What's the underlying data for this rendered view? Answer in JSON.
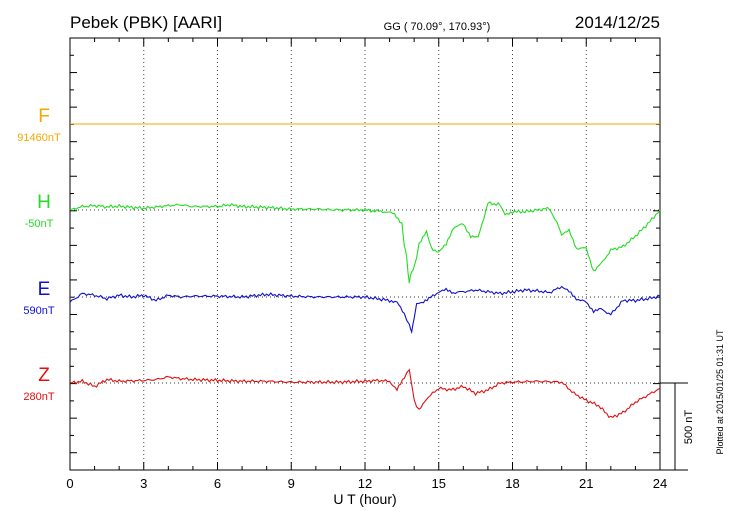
{
  "header": {
    "station": "Pebek (PBK)  [AARI]",
    "coords": "GG ( 70.09°, 170.93°)",
    "date": "2014/12/25"
  },
  "footer_note": "Plotted at 2015/01/25 01:31  UT",
  "scale_bar_label": "500 nT",
  "colors": {
    "F": "#f2a900",
    "H": "#22dd22",
    "E": "#1010cc",
    "Z": "#e01010",
    "axis": "#000000",
    "grid": "#555555"
  },
  "chart_data": {
    "type": "line",
    "title": "Pebek (PBK)  [AARI]",
    "xlabel": "U T (hour)",
    "ylabel": "",
    "xlim": [
      0,
      24
    ],
    "x_ticks": [
      "0",
      "3",
      "6",
      "9",
      "12",
      "15",
      "18",
      "21",
      "24"
    ],
    "grid": true,
    "scale_nT_per_bar": 500,
    "series": [
      {
        "name": "F",
        "baseline_label": "91460nT",
        "x": [
          0,
          24
        ],
        "y": [
          0,
          0
        ]
      },
      {
        "name": "H",
        "baseline_label": "-50nT",
        "x": [
          0,
          0.5,
          1,
          1.5,
          2,
          2.5,
          3,
          4,
          4.5,
          5,
          6,
          6.5,
          7,
          8,
          9,
          10,
          11,
          12,
          12.8,
          13.2,
          13.5,
          13.6,
          13.7,
          13.8,
          13.9,
          14.0,
          14.2,
          14.5,
          14.7,
          15.0,
          15.3,
          15.6,
          16.0,
          16.3,
          16.6,
          17.0,
          17.5,
          17.7,
          18.0,
          18.5,
          19.0,
          19.5,
          19.8,
          20.0,
          20.3,
          20.6,
          21.0,
          21.3,
          21.6,
          22.0,
          22.5,
          23.0,
          23.5,
          24.0
        ],
        "y": [
          0,
          20,
          25,
          18,
          22,
          15,
          10,
          25,
          30,
          20,
          20,
          30,
          20,
          15,
          5,
          5,
          0,
          0,
          -10,
          -20,
          -80,
          -200,
          -280,
          -420,
          -350,
          -330,
          -200,
          -120,
          -220,
          -240,
          -200,
          -100,
          -80,
          -150,
          -160,
          40,
          30,
          -30,
          -10,
          -10,
          0,
          10,
          -70,
          -140,
          -120,
          -220,
          -220,
          -350,
          -310,
          -230,
          -210,
          -150,
          -80,
          0
        ]
      },
      {
        "name": "E",
        "baseline_label": "590nT",
        "x": [
          0,
          0.5,
          1,
          1.5,
          2,
          2.5,
          3,
          3.5,
          4,
          4.5,
          5,
          6,
          7,
          8,
          9,
          10,
          11,
          12,
          12.5,
          13.0,
          13.3,
          13.6,
          13.8,
          13.9,
          14.0,
          14.1,
          14.3,
          14.6,
          15.0,
          15.3,
          15.6,
          16.0,
          16.5,
          17.0,
          17.5,
          18.0,
          18.5,
          19.0,
          19.5,
          20.0,
          20.3,
          20.6,
          21.0,
          21.3,
          21.6,
          22.0,
          22.5,
          23.0,
          23.5,
          24.0
        ],
        "y": [
          -30,
          20,
          10,
          -10,
          10,
          0,
          10,
          -20,
          10,
          0,
          5,
          5,
          0,
          15,
          5,
          0,
          0,
          0,
          -10,
          -20,
          -30,
          -100,
          -160,
          -200,
          -120,
          -40,
          -30,
          -10,
          30,
          40,
          25,
          30,
          40,
          30,
          20,
          30,
          40,
          35,
          25,
          60,
          30,
          -10,
          -30,
          -80,
          -70,
          -100,
          -20,
          -20,
          -10,
          5
        ]
      },
      {
        "name": "Z",
        "baseline_label": "280nT",
        "x": [
          0,
          0.5,
          1,
          1.5,
          2,
          3,
          3.5,
          4,
          4.5,
          5,
          6,
          7,
          8,
          9,
          10,
          11,
          12,
          12.5,
          13.0,
          13.3,
          13.6,
          13.8,
          14.0,
          14.2,
          14.5,
          15.0,
          15.5,
          16.0,
          16.5,
          17.0,
          17.5,
          18.0,
          19.0,
          20.0,
          20.5,
          21.0,
          21.5,
          22.0,
          22.5,
          23.0,
          23.5,
          24.0
        ],
        "y": [
          0,
          10,
          -20,
          20,
          10,
          15,
          20,
          35,
          25,
          20,
          15,
          10,
          10,
          5,
          5,
          5,
          10,
          15,
          10,
          -40,
          30,
          80,
          -100,
          -160,
          -90,
          -30,
          -40,
          -20,
          -60,
          -40,
          0,
          5,
          10,
          5,
          -60,
          -100,
          -130,
          -200,
          -170,
          -110,
          -70,
          -30
        ]
      }
    ]
  }
}
